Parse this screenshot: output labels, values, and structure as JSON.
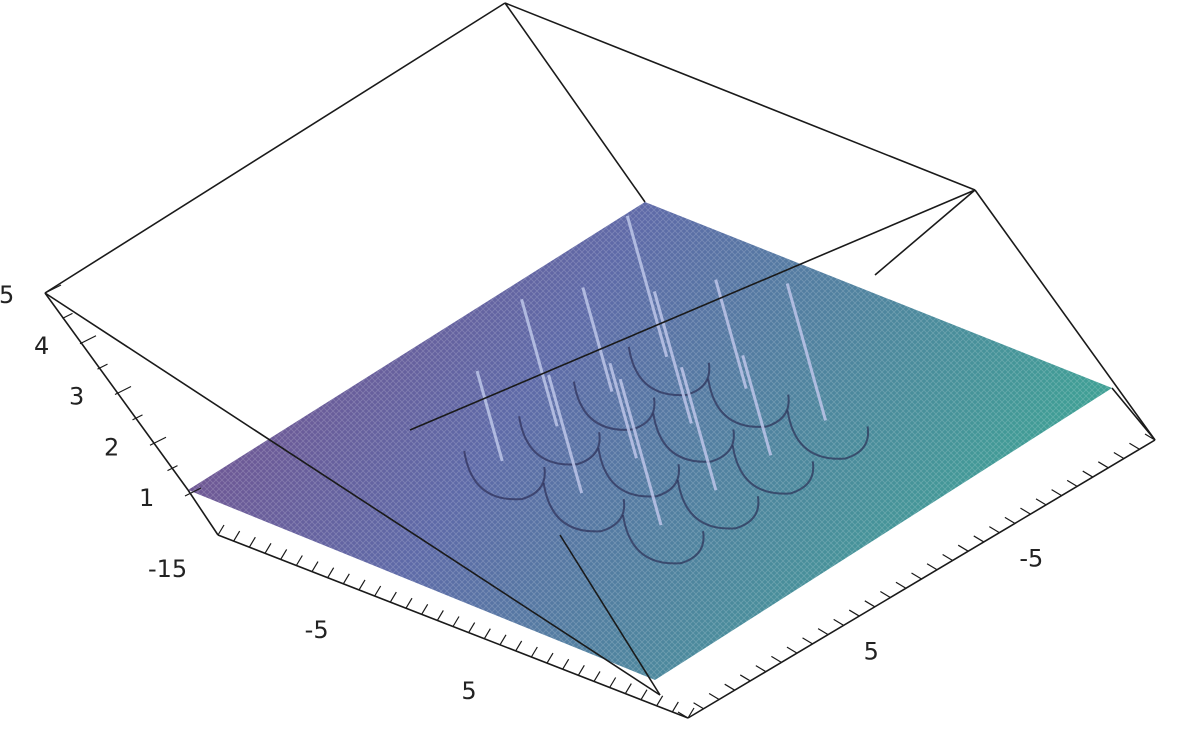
{
  "chart_data": {
    "type": "surface3d",
    "title": "",
    "xlabel": "",
    "ylabel": "",
    "zlabel": "",
    "colors": {
      "surface_low": "#7a4a86",
      "surface_high": "#3f9f95",
      "surface_mid": "#5e6aa8",
      "box": "#1a1a1a",
      "spike": "#b9c2e6"
    },
    "grid": false,
    "z_axis": {
      "range": [
        0.75,
        5
      ],
      "ticks": [
        1,
        2,
        3,
        4,
        5
      ],
      "tick_labels": [
        "1",
        "2",
        "3",
        "4",
        "5"
      ]
    },
    "x_axis": {
      "range": [
        -15,
        15
      ],
      "tick_labels": [
        "-15",
        "-5",
        "5"
      ],
      "tick_values": [
        -15,
        -5,
        5
      ]
    },
    "y_axis": {
      "range": [
        -15,
        15
      ],
      "tick_labels": [
        "-5",
        "5"
      ],
      "tick_values": [
        -5,
        5
      ]
    },
    "surface": {
      "base_z": 1,
      "spike_count": 12,
      "spike_peak_z": 4.2,
      "description_visible": false
    }
  }
}
